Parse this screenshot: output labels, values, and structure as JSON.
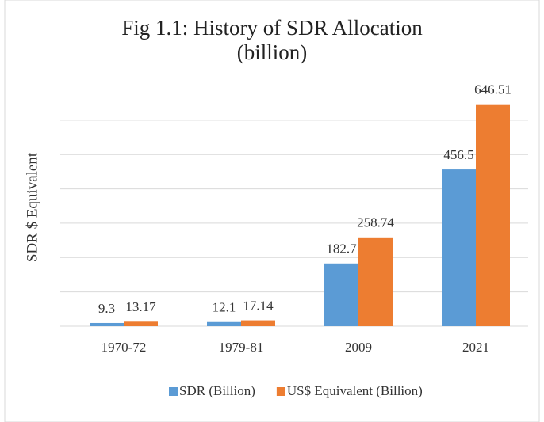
{
  "chart_data": {
    "type": "bar",
    "title": "Fig 1.1: History of SDR Allocation (billion)",
    "y_label": "SDR $ Equivalent",
    "categories": [
      "1970-72",
      "1979-81",
      "2009",
      "2021"
    ],
    "series": [
      {
        "name": "SDR (Billion)",
        "color": "#5b9bd5",
        "values": [
          9.3,
          12.1,
          182.7,
          456.5
        ]
      },
      {
        "name": "US$ Equivalent (Billion)",
        "color": "#ed7d31",
        "values": [
          13.17,
          17.14,
          258.74,
          646.51
        ]
      }
    ],
    "ylim": [
      0,
      700
    ],
    "yticks": [
      0,
      100,
      200,
      300,
      400,
      500,
      600,
      700
    ],
    "grid": true,
    "legend": "bottom"
  }
}
